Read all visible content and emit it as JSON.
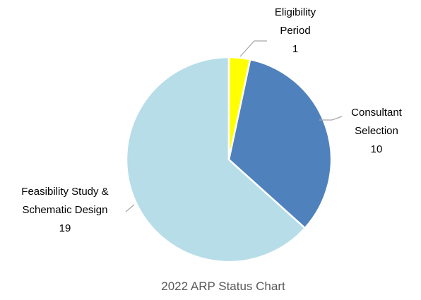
{
  "chart_data": {
    "type": "pie",
    "title": "2022 ARP Status Chart",
    "categories": [
      "Eligibility Period",
      "Consultant Selection",
      "Feasibility Study & Schematic Design"
    ],
    "values": [
      1,
      10,
      19
    ],
    "colors": [
      "#ffff00",
      "#4f81bd",
      "#b7dde8"
    ]
  }
}
